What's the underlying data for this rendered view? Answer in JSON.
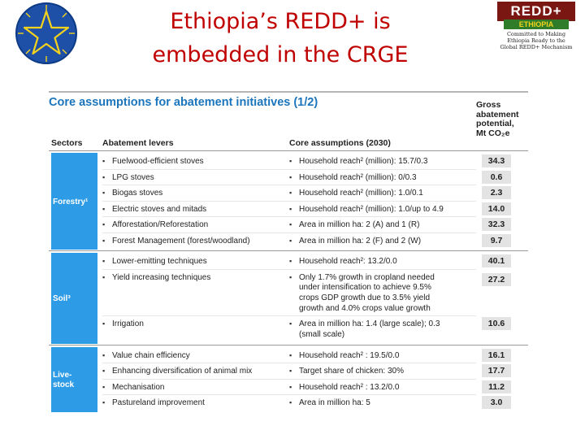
{
  "header": {
    "title_line1": "Ethiopia’s REDD+ is",
    "title_line2": "embedded in the CRGE"
  },
  "logo": {
    "top": "REDD+",
    "sub": "ETHIOPIA",
    "tag1": "Committed to Making",
    "tag2": "Ethiopia Ready to the",
    "tag3": "Global REDD+ Mechanism"
  },
  "colors": {
    "title": "#c00000",
    "panel_title": "#1b75bc",
    "sector_bg": "#2e9be6",
    "value_bg": "#e3e3e3"
  },
  "panel": {
    "title": "Core assumptions for abatement initiatives (1/2)",
    "col_sectors": "Sectors",
    "col_levers": "Abatement levers",
    "col_assumptions": "Core assumptions (2030)",
    "col_gross": [
      "Gross",
      "abatement",
      "potential,",
      "Mt CO₂e"
    ]
  },
  "sectors": [
    {
      "name": "Forestry¹",
      "levers": [
        {
          "lever": "Fuelwood-efficient stoves",
          "assumption": [
            "Household reach² (million): 15.7/0.3"
          ],
          "value": "34.3"
        },
        {
          "lever": "LPG stoves",
          "assumption": [
            "Household reach² (million): 0/0.3"
          ],
          "value": "0.6"
        },
        {
          "lever": "Biogas stoves",
          "assumption": [
            "Household reach² (million): 1.0/0.1"
          ],
          "value": "2.3"
        },
        {
          "lever": "Electric stoves and mitads",
          "assumption": [
            "Household reach² (million): 1.0/up to 4.9"
          ],
          "value": "14.0"
        },
        {
          "lever": "Afforestation/Reforestation",
          "assumption": [
            "Area in million ha: 2 (A) and 1 (R)"
          ],
          "value": "32.3"
        },
        {
          "lever": "Forest Management (forest/woodland)",
          "assumption": [
            "Area in million ha: 2 (F) and 2 (W)"
          ],
          "value": "9.7"
        }
      ]
    },
    {
      "name": "Soil³",
      "levers": [
        {
          "lever": "Lower-emitting techniques",
          "assumption": [
            "Household reach²: 13.2/0.0"
          ],
          "value": "40.1"
        },
        {
          "lever": "Yield increasing techniques",
          "assumption": [
            "Only 1.7% growth in cropland needed",
            "under intensification to achieve 9.5%",
            "crops GDP growth due to 3.5% yield",
            "growth and 4.0% crops value growth"
          ],
          "value": "27.2"
        },
        {
          "lever": "Irrigation",
          "assumption": [
            "Area in million ha: 1.4 (large scale); 0.3",
            "(small scale)"
          ],
          "value": "10.6"
        }
      ]
    },
    {
      "name": "Live-stock",
      "name_lines": [
        "Live-",
        "stock"
      ],
      "levers": [
        {
          "lever": "Value chain efficiency",
          "assumption": [
            "Household reach² : 19.5/0.0"
          ],
          "value": "16.1"
        },
        {
          "lever": "Enhancing diversification of animal mix",
          "assumption": [
            "Target share of chicken: 30%"
          ],
          "value": "17.7"
        },
        {
          "lever": "Mechanisation",
          "assumption": [
            "Household reach² : 13.2/0.0"
          ],
          "value": "11.2"
        },
        {
          "lever": "Pastureland improvement",
          "assumption": [
            "Area in million ha: 5"
          ],
          "value": "3.0"
        }
      ]
    }
  ]
}
